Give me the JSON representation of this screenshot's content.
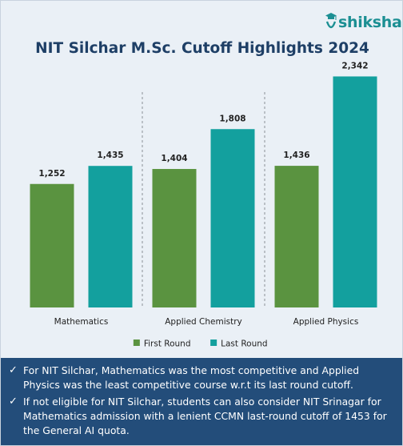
{
  "brand": {
    "name": "shiksha",
    "logo_icon": "graduation-cap-icon",
    "color": "#1c8f93"
  },
  "title": "NIT Silchar M.Sc. Cutoff Highlights 2024",
  "chart_data": {
    "type": "bar",
    "title": "NIT Silchar M.Sc. Cutoff Highlights 2024",
    "categories": [
      "Mathematics",
      "Applied Chemistry",
      "Applied Physics"
    ],
    "series": [
      {
        "name": "First Round",
        "values": [
          1252,
          1404,
          1436
        ],
        "labels": [
          "1,252",
          "1,404",
          "1,436"
        ],
        "color": "#5a9340"
      },
      {
        "name": "Last Round",
        "values": [
          1435,
          1808,
          2342
        ],
        "labels": [
          "1,435",
          "1,808",
          "2,342"
        ],
        "color": "#13a09e"
      }
    ],
    "ylim": [
      0,
      2500
    ],
    "xlabel": "",
    "ylabel": "",
    "grid": false,
    "legend": "bottom",
    "category_separators": "dashed"
  },
  "notes": {
    "check_icon": "check-icon",
    "items": [
      "For NIT Silchar, Mathematics was the most competitive and Applied Physics was the least competitive course w.r.t its last round cutoff.",
      "If not eligible for NIT Silchar, students can also consider NIT Srinagar for Mathematics admission with a lenient CCMN last-round cutoff of 1453 for the General AI quota."
    ]
  },
  "colors": {
    "background": "#eaf0f6",
    "title": "#1e3f66",
    "notes_background": "#234d7a"
  }
}
